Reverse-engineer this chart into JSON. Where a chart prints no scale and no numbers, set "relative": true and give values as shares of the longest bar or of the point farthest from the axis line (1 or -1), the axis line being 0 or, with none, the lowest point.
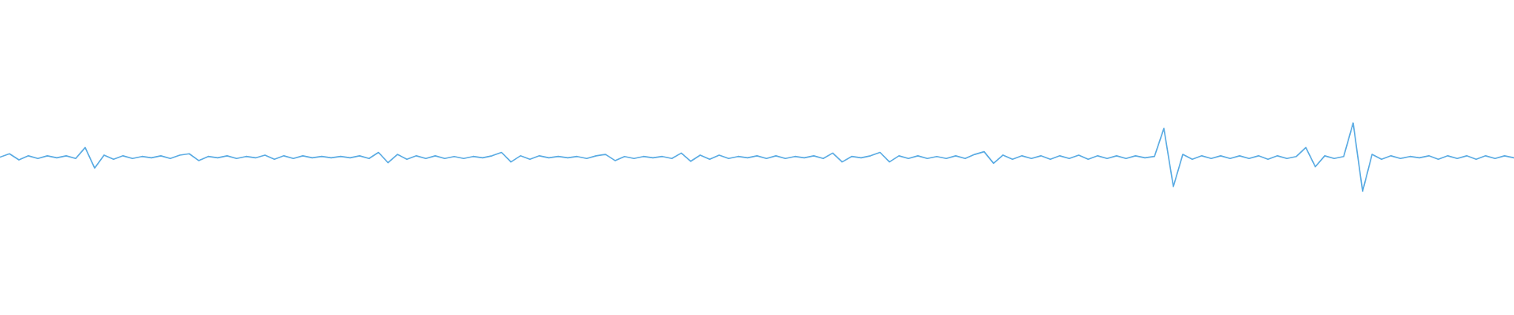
{
  "chart_data": {
    "type": "line",
    "relative": true,
    "color": "#5aabe3",
    "categories": [
      null,
      null,
      null,
      null,
      null,
      null,
      null,
      null,
      null,
      null,
      null,
      null,
      null,
      null,
      null,
      null,
      null,
      null,
      null,
      null,
      null,
      null,
      null,
      null,
      null,
      null,
      null,
      null,
      null,
      null,
      null,
      null,
      null,
      null,
      null,
      null,
      null,
      null,
      null,
      null,
      null,
      null,
      null,
      null,
      null,
      null,
      null,
      null,
      null,
      null,
      null,
      null,
      null,
      null,
      null,
      null,
      null,
      null,
      null,
      null,
      null,
      null,
      null,
      null,
      null,
      null,
      null,
      null,
      null,
      null,
      null,
      null,
      null,
      null,
      null,
      null,
      null,
      null,
      null,
      null,
      null,
      null,
      null,
      null,
      null,
      null,
      null,
      null,
      null,
      null,
      null,
      null,
      null,
      null,
      null,
      null,
      null,
      null,
      null,
      null,
      null,
      null,
      null,
      null,
      null,
      null,
      null,
      null,
      null,
      null,
      null,
      null,
      null,
      null,
      null,
      null,
      null,
      null,
      null,
      null,
      null,
      null,
      null,
      null,
      null,
      null,
      null,
      null,
      null,
      null,
      null,
      null,
      null,
      null,
      null,
      null,
      null,
      null,
      null,
      null,
      null,
      null,
      null,
      null,
      null,
      null,
      null,
      null,
      null,
      null,
      null,
      null,
      null,
      null,
      null,
      null,
      null,
      null,
      null,
      null,
      null
    ],
    "values": [
      0.5,
      0.55,
      0.46,
      0.52,
      0.48,
      0.52,
      0.49,
      0.52,
      0.48,
      0.64,
      0.34,
      0.53,
      0.47,
      0.52,
      0.48,
      0.51,
      0.49,
      0.52,
      0.48,
      0.53,
      0.55,
      0.45,
      0.51,
      0.49,
      0.52,
      0.48,
      0.51,
      0.49,
      0.53,
      0.47,
      0.52,
      0.48,
      0.52,
      0.49,
      0.51,
      0.49,
      0.51,
      0.49,
      0.52,
      0.48,
      0.57,
      0.42,
      0.54,
      0.47,
      0.52,
      0.48,
      0.52,
      0.48,
      0.51,
      0.48,
      0.51,
      0.49,
      0.52,
      0.57,
      0.43,
      0.52,
      0.47,
      0.52,
      0.49,
      0.51,
      0.49,
      0.51,
      0.48,
      0.52,
      0.54,
      0.45,
      0.51,
      0.48,
      0.51,
      0.49,
      0.51,
      0.48,
      0.56,
      0.44,
      0.53,
      0.47,
      0.53,
      0.48,
      0.51,
      0.49,
      0.52,
      0.48,
      0.52,
      0.48,
      0.51,
      0.49,
      0.52,
      0.48,
      0.56,
      0.43,
      0.51,
      0.49,
      0.52,
      0.57,
      0.43,
      0.52,
      0.48,
      0.52,
      0.48,
      0.51,
      0.48,
      0.52,
      0.48,
      0.54,
      0.58,
      0.41,
      0.53,
      0.47,
      0.52,
      0.48,
      0.52,
      0.47,
      0.52,
      0.48,
      0.53,
      0.47,
      0.52,
      0.48,
      0.52,
      0.48,
      0.52,
      0.49,
      0.51,
      0.92,
      0.07,
      0.54,
      0.47,
      0.52,
      0.48,
      0.52,
      0.48,
      0.52,
      0.48,
      0.52,
      0.47,
      0.52,
      0.48,
      0.51,
      0.64,
      0.36,
      0.52,
      0.48,
      0.51,
      1.0,
      0.0,
      0.54,
      0.47,
      0.52,
      0.48,
      0.51,
      0.49,
      0.52,
      0.47,
      0.52,
      0.48,
      0.52,
      0.47,
      0.52,
      0.48,
      0.52,
      0.49
    ]
  }
}
